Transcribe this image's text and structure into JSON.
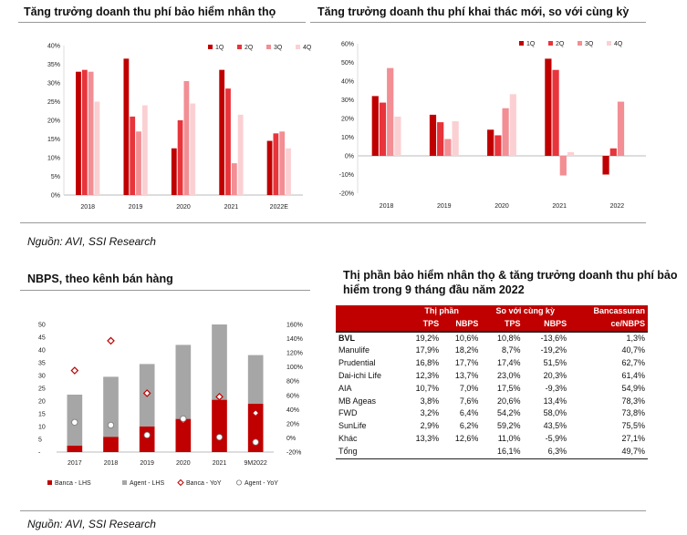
{
  "chart_data": [
    {
      "type": "bar",
      "title": "Tăng trưởng doanh thu phí bảo hiểm nhân thọ",
      "categories": [
        "2018",
        "2019",
        "2020",
        "2021",
        "2022E"
      ],
      "series": [
        {
          "name": "1Q",
          "values": [
            33,
            36.5,
            12.5,
            33.5,
            14.5
          ]
        },
        {
          "name": "2Q",
          "values": [
            33.5,
            21,
            20,
            28.5,
            16.5
          ]
        },
        {
          "name": "3Q",
          "values": [
            33,
            17,
            30.5,
            8.5,
            17
          ]
        },
        {
          "name": "4Q",
          "values": [
            25,
            24,
            24.5,
            21.5,
            12.5
          ]
        }
      ],
      "yticks": [
        "0%",
        "5%",
        "10%",
        "15%",
        "20%",
        "25%",
        "30%",
        "35%",
        "40%"
      ],
      "ylim": [
        0,
        40
      ],
      "colors": [
        "#c00000",
        "#e8343b",
        "#f28e94",
        "#fbd0d3"
      ]
    },
    {
      "type": "bar",
      "title": "Tăng trưởng doanh thu phí khai thác  mới, so với cùng kỳ",
      "categories": [
        "2018",
        "2019",
        "2020",
        "2021",
        "2022"
      ],
      "series": [
        {
          "name": "1Q",
          "values": [
            32,
            22,
            14,
            52,
            -10
          ]
        },
        {
          "name": "2Q",
          "values": [
            28.5,
            18,
            11,
            46,
            4
          ]
        },
        {
          "name": "3Q",
          "values": [
            47,
            9,
            25.5,
            -10.5,
            29
          ]
        },
        {
          "name": "4Q",
          "values": [
            21,
            18.5,
            33,
            2,
            null
          ]
        }
      ],
      "yticks": [
        "-20%",
        "-10%",
        "0%",
        "10%",
        "20%",
        "30%",
        "40%",
        "50%",
        "60%"
      ],
      "ylim": [
        -20,
        60
      ],
      "colors": [
        "#c00000",
        "#e8343b",
        "#f28e94",
        "#fbd0d3"
      ]
    },
    {
      "type": "bar",
      "title": "NBPS, theo kênh bán hàng",
      "categories": [
        "2017",
        "2018",
        "2019",
        "2020",
        "2021",
        "9M2022"
      ],
      "series": [
        {
          "name": "Banca - LHS",
          "values": [
            2.5,
            6,
            10,
            13,
            20.5,
            19
          ]
        },
        {
          "name": "Agent - LHS",
          "values": [
            20,
            23.5,
            24.5,
            29,
            29.5,
            19
          ]
        },
        {
          "name": "Banca - YoY",
          "values": [
            95,
            137,
            63,
            25,
            58,
            35
          ]
        },
        {
          "name": "Agent - YoY",
          "values": [
            22,
            18,
            4,
            27,
            1,
            -6
          ]
        }
      ],
      "yticks_left": [
        "-",
        "5",
        "10",
        "15",
        "20",
        "25",
        "30",
        "35",
        "40",
        "45",
        "50"
      ],
      "yticks_right": [
        "-20%",
        "0%",
        "20%",
        "40%",
        "60%",
        "80%",
        "100%",
        "120%",
        "140%",
        "160%"
      ],
      "ylim_left": [
        0,
        50
      ],
      "ylim_right": [
        -20,
        160
      ],
      "colors": [
        "#c00000",
        "#a6a6a6",
        "#c00000",
        "#ffffff"
      ]
    }
  ],
  "sources": {
    "top": "Nguồn: AVI, SSI Research",
    "bottom": "Nguồn: AVI, SSI Research"
  },
  "table": {
    "title_line1": "Thị phần bảo hiểm nhân thọ & tăng trưởng doanh thu phí bảo",
    "title_line2": "hiểm trong 9 tháng đầu năm 2022",
    "group_headers": [
      "Thị phần",
      "So với cùng kỳ",
      "Bancassuran"
    ],
    "sub_headers": [
      "TPS",
      "NBPS",
      "TPS",
      "NBPS",
      "ce/NBPS"
    ],
    "rows": [
      {
        "name": "BVL",
        "v1": "19,2%",
        "v2": "10,6%",
        "v3": "10,8%",
        "v4": "-13,6%",
        "v5": "1,3%"
      },
      {
        "name": "Manulife",
        "v1": "17,9%",
        "v2": "18,2%",
        "v3": "8,7%",
        "v4": "-19,2%",
        "v5": "40,7%"
      },
      {
        "name": "Prudential",
        "v1": "16,8%",
        "v2": "17,7%",
        "v3": "17,4%",
        "v4": "51,5%",
        "v5": "62,7%"
      },
      {
        "name": "Dai-ichi Life",
        "v1": "12,3%",
        "v2": "13,7%",
        "v3": "23,0%",
        "v4": "20,3%",
        "v5": "61,4%"
      },
      {
        "name": "AIA",
        "v1": "10,7%",
        "v2": "7,0%",
        "v3": "17,5%",
        "v4": "-9,3%",
        "v5": "54,9%"
      },
      {
        "name": "MB Ageas",
        "v1": "3,8%",
        "v2": "7,6%",
        "v3": "20,6%",
        "v4": "13,4%",
        "v5": "78,3%"
      },
      {
        "name": "FWD",
        "v1": "3,2%",
        "v2": "6,4%",
        "v3": "54,2%",
        "v4": "58,0%",
        "v5": "73,8%"
      },
      {
        "name": "SunLife",
        "v1": "2,9%",
        "v2": "6,2%",
        "v3": "59,2%",
        "v4": "43,5%",
        "v5": "75,5%"
      },
      {
        "name": "Khác",
        "v1": "13,3%",
        "v2": "12,6%",
        "v3": "11,0%",
        "v4": "-5,9%",
        "v5": "27,1%"
      },
      {
        "name": "Tổng",
        "v1": "",
        "v2": "",
        "v3": "16,1%",
        "v4": "6,3%",
        "v5": "49,7%"
      }
    ]
  }
}
